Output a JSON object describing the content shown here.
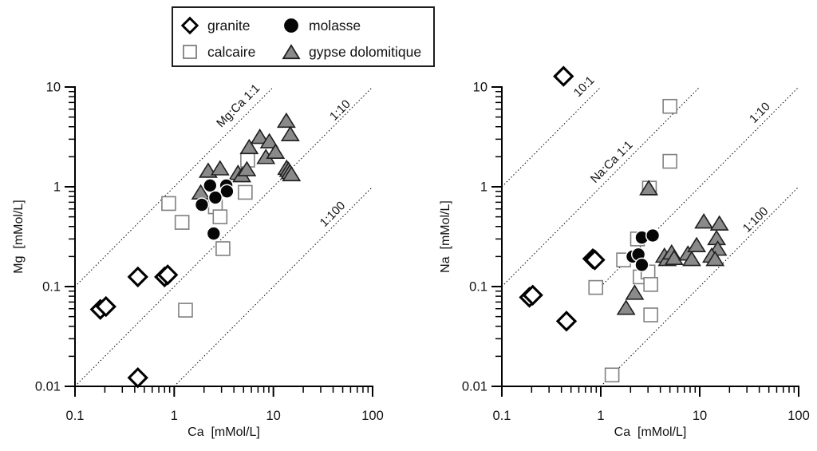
{
  "legend": {
    "items": [
      {
        "label": "granite",
        "marker": "diamond"
      },
      {
        "label": "molasse",
        "marker": "circle"
      },
      {
        "label": "calcaire",
        "marker": "square"
      },
      {
        "label": "gypse dolomitique",
        "marker": "triangle"
      }
    ]
  },
  "colors": {
    "axis": "#000000",
    "text": "#111111",
    "ref_line": "#000000",
    "diamond_fill": "#ffffff",
    "diamond_stroke": "#000000",
    "square_fill": "#ffffff",
    "square_stroke": "#808080",
    "circle_fill": "#060606",
    "circle_stroke": "#ffffff",
    "triangle_fill": "#8a8a8a",
    "triangle_stroke": "#1f1f1f"
  },
  "chart_data": [
    {
      "type": "scatter",
      "x_scale": "log",
      "y_scale": "log",
      "xlabel": "Ca  [mMol/L]",
      "ylabel": "Mg  [mMol/L]",
      "xlim": [
        0.1,
        100
      ],
      "ylim": [
        0.01,
        10
      ],
      "x_ticks": [
        {
          "v": 0.1,
          "label": "0.1"
        },
        {
          "v": 1,
          "label": "1"
        },
        {
          "v": 10,
          "label": "10"
        },
        {
          "v": 100,
          "label": "100"
        }
      ],
      "y_ticks": [
        {
          "v": 10,
          "label": "10"
        },
        {
          "v": 1,
          "label": "1"
        },
        {
          "v": 0.1,
          "label": "0.1"
        },
        {
          "v": 0.01,
          "label": "0.01"
        }
      ],
      "ref_lines": [
        {
          "label": "Mg:Ca 1:1",
          "from": [
            0.1,
            0.1
          ],
          "to": [
            10,
            10
          ],
          "label_at": [
            4.7,
            6.1
          ]
        },
        {
          "label": "1:10",
          "from": [
            0.1,
            0.01
          ],
          "to": [
            100,
            10
          ],
          "label_at": [
            50,
            5.5
          ]
        },
        {
          "label": "1:100",
          "from": [
            1,
            0.01
          ],
          "to": [
            100,
            1
          ],
          "label_at": [
            42,
            0.5
          ]
        }
      ],
      "series": [
        {
          "name": "calcaire",
          "marker": "square",
          "points": [
            [
              0.88,
              0.68
            ],
            [
              1.2,
              0.44
            ],
            [
              1.3,
              0.058
            ],
            [
              2.6,
              0.63
            ],
            [
              2.9,
              0.5
            ],
            [
              3.1,
              0.24
            ],
            [
              5.2,
              0.88
            ],
            [
              5.5,
              1.85
            ]
          ]
        },
        {
          "name": "gypse dolomitique",
          "marker": "triangle",
          "points": [
            [
              1.85,
              0.86
            ],
            [
              2.2,
              1.42
            ],
            [
              2.9,
              1.5
            ],
            [
              4.4,
              1.35
            ],
            [
              4.8,
              1.28
            ],
            [
              5.4,
              1.47
            ],
            [
              5.7,
              2.45
            ],
            [
              7.3,
              3.1
            ],
            [
              8.4,
              1.95
            ],
            [
              9.1,
              2.8
            ],
            [
              10.5,
              2.2
            ],
            [
              13.5,
              4.5
            ],
            [
              14.8,
              3.3
            ],
            [
              13.6,
              1.52
            ],
            [
              14.2,
              1.45
            ],
            [
              14.7,
              1.38
            ],
            [
              15.2,
              1.31
            ]
          ]
        },
        {
          "name": "molasse",
          "marker": "circle",
          "points": [
            [
              2.3,
              1.03
            ],
            [
              3.35,
              1.03
            ],
            [
              3.4,
              0.9
            ],
            [
              2.6,
              0.78
            ],
            [
              1.9,
              0.66
            ],
            [
              2.5,
              0.34
            ]
          ]
        },
        {
          "name": "granite",
          "marker": "diamond",
          "points": [
            [
              0.18,
              0.059
            ],
            [
              0.205,
              0.063
            ],
            [
              0.43,
              0.125
            ],
            [
              0.8,
              0.125
            ],
            [
              0.86,
              0.131
            ],
            [
              0.43,
              0.0122
            ]
          ]
        }
      ]
    },
    {
      "type": "scatter",
      "x_scale": "log",
      "y_scale": "log",
      "xlabel": "Ca  [mMol/L]",
      "ylabel": "Na  [mMol/L]",
      "xlim": [
        0.1,
        100
      ],
      "ylim": [
        0.01,
        10
      ],
      "x_ticks": [
        {
          "v": 0.1,
          "label": "0.1"
        },
        {
          "v": 1,
          "label": "1"
        },
        {
          "v": 10,
          "label": "10"
        },
        {
          "v": 100,
          "label": "100"
        }
      ],
      "y_ticks": [
        {
          "v": 10,
          "label": "10"
        },
        {
          "v": 1,
          "label": "1"
        },
        {
          "v": 0.1,
          "label": "0.1"
        },
        {
          "v": 0.01,
          "label": "0.01"
        }
      ],
      "ref_lines": [
        {
          "label": "10:1",
          "from": [
            0.1,
            1
          ],
          "to": [
            1,
            10
          ],
          "label_at": [
            0.72,
            9.5
          ]
        },
        {
          "label": "Na:Ca 1:1",
          "from": [
            0.1,
            0.1
          ],
          "to": [
            10,
            10
          ],
          "label_at": [
            1.37,
            1.67
          ]
        },
        {
          "label": "1:10",
          "from": [
            1,
            0.1
          ],
          "to": [
            100,
            10
          ],
          "label_at": [
            43,
            5.2
          ]
        },
        {
          "label": "1:100",
          "from": [
            1,
            0.01
          ],
          "to": [
            100,
            1
          ],
          "label_at": [
            39,
            0.44
          ]
        }
      ],
      "series": [
        {
          "name": "calcaire",
          "marker": "square",
          "points": [
            [
              5.0,
              6.4
            ],
            [
              5.0,
              1.8
            ],
            [
              3.1,
              0.97
            ],
            [
              0.89,
              0.098
            ],
            [
              1.3,
              0.013
            ],
            [
              2.35,
              0.3
            ],
            [
              1.7,
              0.185
            ],
            [
              2.5,
              0.125
            ],
            [
              3.0,
              0.14
            ],
            [
              3.2,
              0.105
            ],
            [
              3.2,
              0.052
            ]
          ]
        },
        {
          "name": "gypse dolomitique",
          "marker": "triangle",
          "points": [
            [
              1.8,
              0.06
            ],
            [
              2.2,
              0.085
            ],
            [
              3.05,
              0.95
            ],
            [
              4.4,
              0.2
            ],
            [
              4.7,
              0.185
            ],
            [
              5.2,
              0.215
            ],
            [
              5.5,
              0.19
            ],
            [
              7.6,
              0.21
            ],
            [
              8.3,
              0.185
            ],
            [
              9.3,
              0.255
            ],
            [
              11.0,
              0.44
            ],
            [
              15.8,
              0.42
            ],
            [
              14.8,
              0.3
            ],
            [
              15.2,
              0.235
            ],
            [
              13.2,
              0.2
            ],
            [
              14.3,
              0.185
            ]
          ]
        },
        {
          "name": "molasse",
          "marker": "circle",
          "points": [
            [
              2.6,
              0.31
            ],
            [
              3.35,
              0.325
            ],
            [
              2.1,
              0.2
            ],
            [
              2.4,
              0.21
            ],
            [
              2.6,
              0.165
            ]
          ]
        },
        {
          "name": "granite",
          "marker": "diamond",
          "points": [
            [
              0.42,
              12.8
            ],
            [
              0.19,
              0.078
            ],
            [
              0.205,
              0.082
            ],
            [
              0.83,
              0.19
            ],
            [
              0.87,
              0.185
            ],
            [
              0.45,
              0.045
            ]
          ]
        }
      ]
    }
  ]
}
